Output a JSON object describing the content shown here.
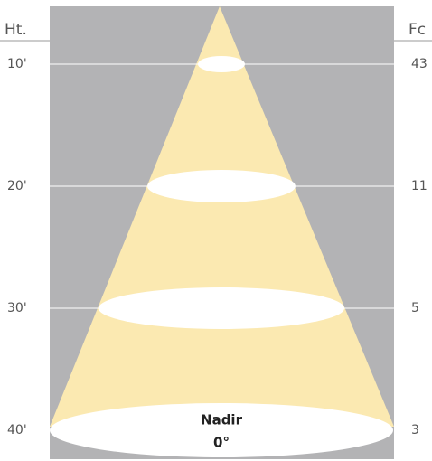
{
  "header": {
    "left": "Ht.",
    "right": "Fc"
  },
  "rows": [
    {
      "height": "10'",
      "fc": 43
    },
    {
      "height": "20'",
      "fc": 11
    },
    {
      "height": "30'",
      "fc": 5
    },
    {
      "height": "40'",
      "fc": 3
    }
  ],
  "nadir": {
    "label": "Nadir",
    "angle": "0°"
  }
}
